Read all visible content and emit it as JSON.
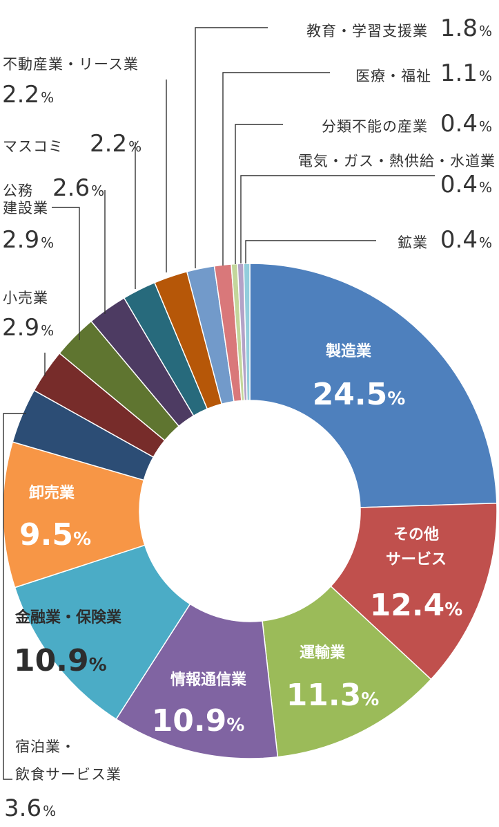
{
  "chart_data": {
    "type": "pie",
    "donut": true,
    "legend": "none",
    "unit": "%",
    "slices": [
      {
        "label": "製造業",
        "value": 24.5,
        "color": "#4e80bd"
      },
      {
        "label": "その他サービス",
        "lines": [
          "その他",
          "サービス"
        ],
        "value": 12.4,
        "color": "#c0504d"
      },
      {
        "label": "運輸業",
        "value": 11.3,
        "color": "#9bbb59"
      },
      {
        "label": "情報通信業",
        "value": 10.9,
        "color": "#8064a2"
      },
      {
        "label": "金融業・保険業",
        "value": 10.9,
        "color": "#4bacc6"
      },
      {
        "label": "卸売業",
        "value": 9.5,
        "color": "#f79646"
      },
      {
        "label": "宿泊業・飲食サービス業",
        "lines": [
          "宿泊業・",
          "飲食サービス業"
        ],
        "value": 3.6,
        "color": "#2c4d75"
      },
      {
        "label": "小売業",
        "value": 2.9,
        "color": "#772c2a"
      },
      {
        "label": "建設業",
        "value": 2.9,
        "color": "#5f7530"
      },
      {
        "label": "公務",
        "value": 2.6,
        "color": "#4d3b62"
      },
      {
        "label": "マスコミ",
        "value": 2.2,
        "color": "#276a7c"
      },
      {
        "label": "不動産業・リース業",
        "value": 2.2,
        "color": "#b65708"
      },
      {
        "label": "教育・学習支援業",
        "value": 1.8,
        "color": "#729aca"
      },
      {
        "label": "医療・福祉",
        "value": 1.1,
        "color": "#d9787a"
      },
      {
        "label": "分類不能の産業",
        "value": 0.4,
        "color": "#c3d69b"
      },
      {
        "label": "電気・ガス・熱供給・水道業",
        "value": 0.4,
        "color": "#b3a2c7"
      },
      {
        "label": "鉱業",
        "value": 0.4,
        "color": "#92cddc"
      }
    ]
  }
}
